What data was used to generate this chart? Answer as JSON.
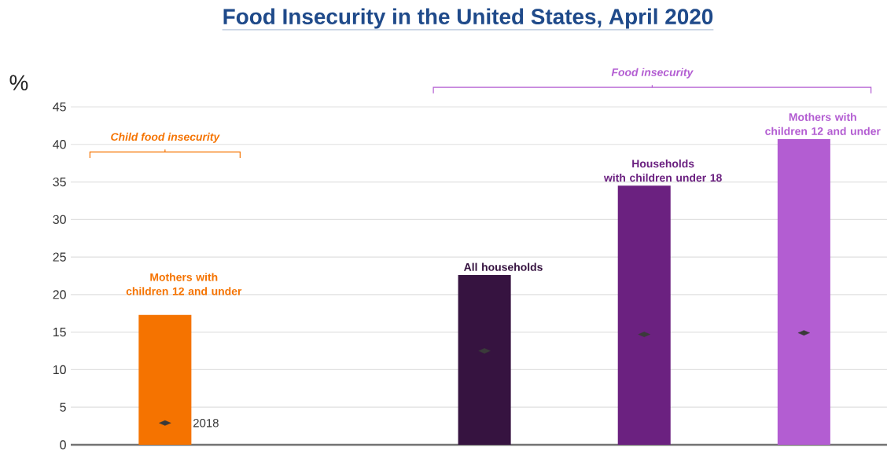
{
  "chart_data": {
    "type": "bar",
    "title": "Food Insecurity in the United States, April 2020",
    "ylabel": "%",
    "categories": [
      "Mothers with children 12 and under",
      null,
      "All households",
      "Households with children under 18",
      "Mothers with children 12 and under"
    ],
    "series": [
      {
        "colors": [
          "#f57300",
          "#ffffff",
          "#361340",
          "#6b2180",
          "#b35dd2"
        ],
        "values": [
          17.3,
          null,
          22.6,
          34.5,
          40.7
        ]
      },
      {
        "type": "scatter",
        "name": "2018",
        "color": "#3a3a3a",
        "marker": "diamond",
        "values": [
          2.9,
          null,
          12.5,
          14.7,
          14.9
        ]
      }
    ],
    "annotations": [
      "Child food insecurity",
      "Food insecurity"
    ],
    "ylim": [
      0,
      45
    ],
    "yticks": [
      0,
      5,
      10,
      15,
      20,
      25,
      30,
      35,
      40,
      45
    ],
    "grid": "y"
  }
}
